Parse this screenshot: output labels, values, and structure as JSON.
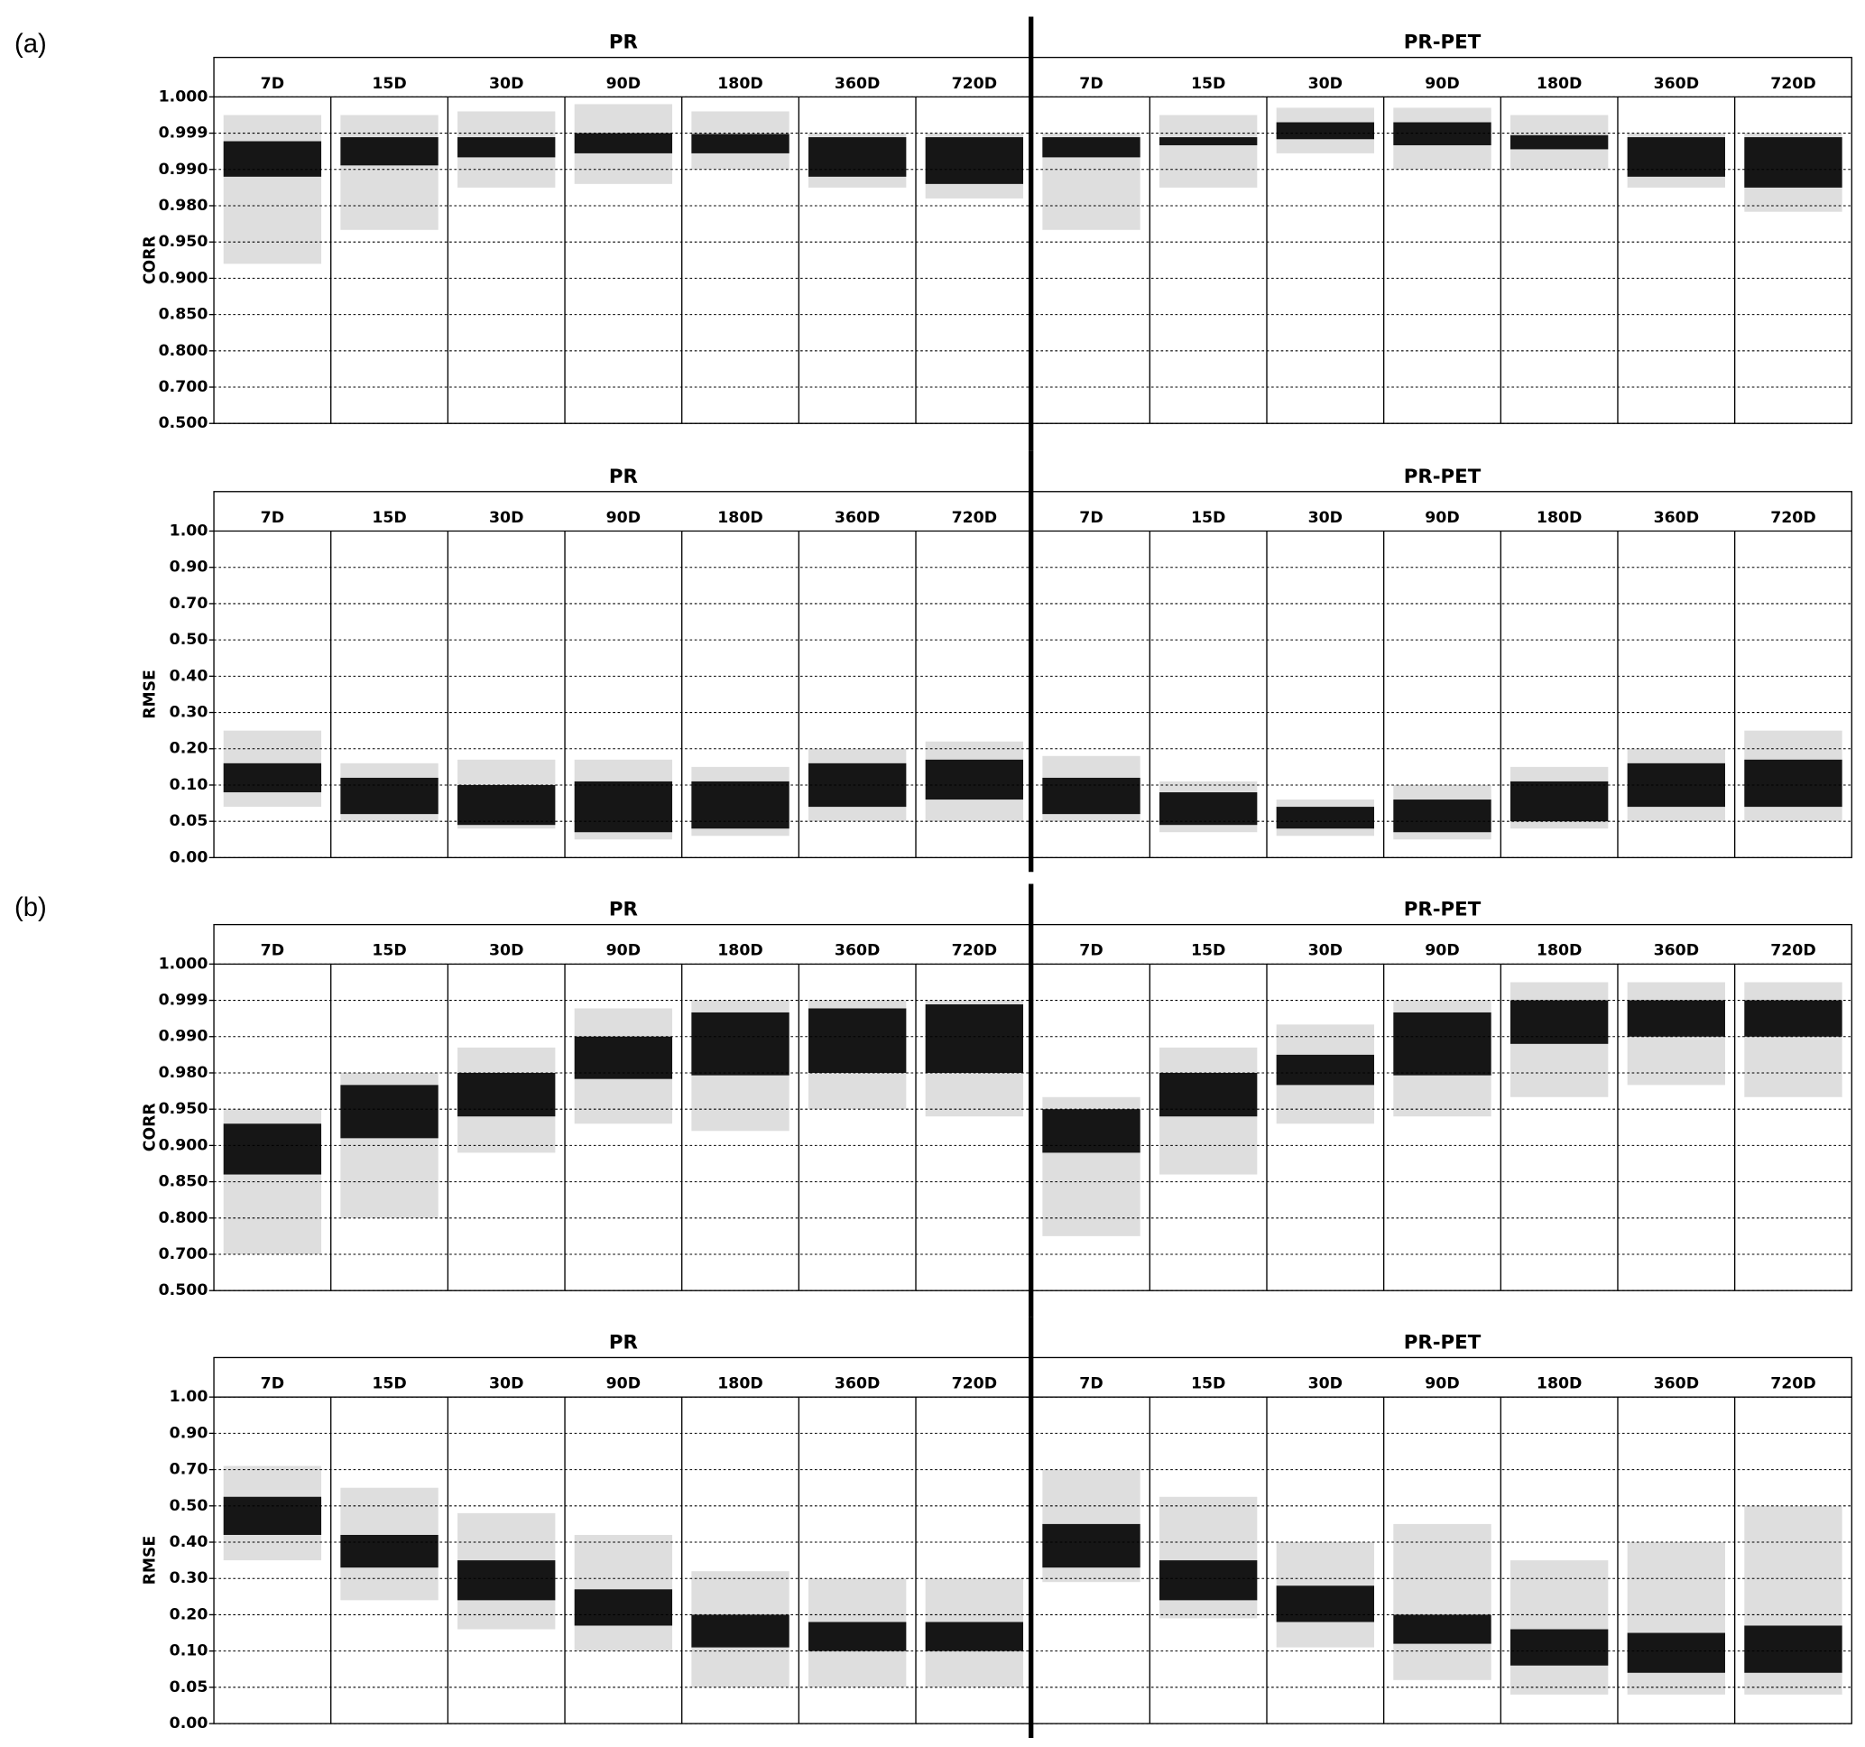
{
  "panel_labels": [
    "(a)",
    "(b)"
  ],
  "chart_data": [
    {
      "type": "band",
      "ylabel": "CORR",
      "color": "#000000",
      "grid": true,
      "scale": "tick-spaced",
      "categories": [
        "7D",
        "15D",
        "30D",
        "90D",
        "180D",
        "360D",
        "720D"
      ],
      "ylim": [
        0.5,
        1.0
      ],
      "yticks": [
        {
          "value": 0.5,
          "label": "0.500"
        },
        {
          "value": 0.7,
          "label": "0.700"
        },
        {
          "value": 0.8,
          "label": "0.800"
        },
        {
          "value": 0.85,
          "label": "0.850"
        },
        {
          "value": 0.9,
          "label": "0.900"
        },
        {
          "value": 0.95,
          "label": "0.950"
        },
        {
          "value": 0.98,
          "label": "0.980"
        },
        {
          "value": 0.99,
          "label": "0.990"
        },
        {
          "value": 0.999,
          "label": "0.999"
        },
        {
          "value": 1.0,
          "label": "1.000"
        }
      ],
      "series": [
        {
          "name": "PR",
          "values": [
            [
              0.988,
              0.997
            ],
            [
              0.991,
              0.998
            ],
            [
              0.993,
              0.998
            ],
            [
              0.994,
              0.999
            ],
            [
              0.994,
              0.9988
            ],
            [
              0.988,
              0.998
            ],
            [
              0.986,
              0.998
            ]
          ],
          "range": [
            [
              0.92,
              0.9995
            ],
            [
              0.96,
              0.9995
            ],
            [
              0.985,
              0.9996
            ],
            [
              0.986,
              0.9998
            ],
            [
              0.99,
              0.9996
            ],
            [
              0.985,
              0.999
            ],
            [
              0.982,
              0.999
            ]
          ]
        },
        {
          "name": "PR-PET",
          "values": [
            [
              0.993,
              0.998
            ],
            [
              0.996,
              0.998
            ],
            [
              0.9975,
              0.9993
            ],
            [
              0.996,
              0.9993
            ],
            [
              0.995,
              0.9985
            ],
            [
              0.988,
              0.998
            ],
            [
              0.985,
              0.998
            ]
          ],
          "range": [
            [
              0.96,
              0.999
            ],
            [
              0.985,
              0.9995
            ],
            [
              0.994,
              0.9997
            ],
            [
              0.99,
              0.9997
            ],
            [
              0.99,
              0.9995
            ],
            [
              0.985,
              0.999
            ],
            [
              0.975,
              0.999
            ]
          ]
        }
      ]
    },
    {
      "type": "band",
      "ylabel": "RMSE",
      "color": "#000000",
      "grid": true,
      "scale": "tick-spaced",
      "categories": [
        "7D",
        "15D",
        "30D",
        "90D",
        "180D",
        "360D",
        "720D"
      ],
      "ylim": [
        0.0,
        1.0
      ],
      "yticks": [
        {
          "value": 0.0,
          "label": "0.00"
        },
        {
          "value": 0.05,
          "label": "0.05"
        },
        {
          "value": 0.1,
          "label": "0.10"
        },
        {
          "value": 0.2,
          "label": "0.20"
        },
        {
          "value": 0.3,
          "label": "0.30"
        },
        {
          "value": 0.4,
          "label": "0.40"
        },
        {
          "value": 0.5,
          "label": "0.50"
        },
        {
          "value": 0.7,
          "label": "0.70"
        },
        {
          "value": 0.9,
          "label": "0.90"
        },
        {
          "value": 1.0,
          "label": "1.00"
        }
      ],
      "series": [
        {
          "name": "PR",
          "values": [
            [
              0.09,
              0.16
            ],
            [
              0.06,
              0.12
            ],
            [
              0.045,
              0.1
            ],
            [
              0.035,
              0.11
            ],
            [
              0.04,
              0.11
            ],
            [
              0.07,
              0.16
            ],
            [
              0.08,
              0.17
            ]
          ],
          "range": [
            [
              0.07,
              0.25
            ],
            [
              0.05,
              0.16
            ],
            [
              0.04,
              0.17
            ],
            [
              0.025,
              0.17
            ],
            [
              0.03,
              0.15
            ],
            [
              0.05,
              0.2
            ],
            [
              0.05,
              0.22
            ]
          ]
        },
        {
          "name": "PR-PET",
          "values": [
            [
              0.06,
              0.12
            ],
            [
              0.045,
              0.09
            ],
            [
              0.04,
              0.07
            ],
            [
              0.035,
              0.08
            ],
            [
              0.05,
              0.11
            ],
            [
              0.07,
              0.16
            ],
            [
              0.07,
              0.17
            ]
          ],
          "range": [
            [
              0.05,
              0.18
            ],
            [
              0.035,
              0.11
            ],
            [
              0.03,
              0.08
            ],
            [
              0.025,
              0.1
            ],
            [
              0.04,
              0.15
            ],
            [
              0.05,
              0.2
            ],
            [
              0.05,
              0.25
            ]
          ]
        }
      ]
    },
    {
      "type": "band",
      "ylabel": "CORR",
      "color": "#000000",
      "grid": true,
      "scale": "tick-spaced",
      "categories": [
        "7D",
        "15D",
        "30D",
        "90D",
        "180D",
        "360D",
        "720D"
      ],
      "ylim": [
        0.5,
        1.0
      ],
      "yticks": [
        {
          "value": 0.5,
          "label": "0.500"
        },
        {
          "value": 0.7,
          "label": "0.700"
        },
        {
          "value": 0.8,
          "label": "0.800"
        },
        {
          "value": 0.85,
          "label": "0.850"
        },
        {
          "value": 0.9,
          "label": "0.900"
        },
        {
          "value": 0.95,
          "label": "0.950"
        },
        {
          "value": 0.98,
          "label": "0.980"
        },
        {
          "value": 0.99,
          "label": "0.990"
        },
        {
          "value": 0.999,
          "label": "0.999"
        },
        {
          "value": 1.0,
          "label": "1.000"
        }
      ],
      "series": [
        {
          "name": "PR",
          "values": [
            [
              0.86,
              0.93
            ],
            [
              0.91,
              0.97
            ],
            [
              0.94,
              0.98
            ],
            [
              0.975,
              0.99
            ],
            [
              0.978,
              0.996
            ],
            [
              0.98,
              0.997
            ],
            [
              0.98,
              0.998
            ]
          ],
          "range": [
            [
              0.7,
              0.95
            ],
            [
              0.8,
              0.98
            ],
            [
              0.89,
              0.987
            ],
            [
              0.93,
              0.997
            ],
            [
              0.92,
              0.999
            ],
            [
              0.95,
              0.999
            ],
            [
              0.94,
              0.999
            ]
          ]
        },
        {
          "name": "PR-PET",
          "values": [
            [
              0.89,
              0.95
            ],
            [
              0.94,
              0.98
            ],
            [
              0.97,
              0.985
            ],
            [
              0.978,
              0.996
            ],
            [
              0.988,
              0.999
            ],
            [
              0.99,
              0.999
            ],
            [
              0.99,
              0.999
            ]
          ],
          "range": [
            [
              0.75,
              0.96
            ],
            [
              0.86,
              0.987
            ],
            [
              0.93,
              0.993
            ],
            [
              0.94,
              0.999
            ],
            [
              0.96,
              0.9995
            ],
            [
              0.97,
              0.9995
            ],
            [
              0.96,
              0.9995
            ]
          ]
        }
      ]
    },
    {
      "type": "band",
      "ylabel": "RMSE",
      "color": "#000000",
      "grid": true,
      "scale": "tick-spaced",
      "categories": [
        "7D",
        "15D",
        "30D",
        "90D",
        "180D",
        "360D",
        "720D"
      ],
      "ylim": [
        0.0,
        1.0
      ],
      "yticks": [
        {
          "value": 0.0,
          "label": "0.00"
        },
        {
          "value": 0.05,
          "label": "0.05"
        },
        {
          "value": 0.1,
          "label": "0.10"
        },
        {
          "value": 0.2,
          "label": "0.20"
        },
        {
          "value": 0.3,
          "label": "0.30"
        },
        {
          "value": 0.4,
          "label": "0.40"
        },
        {
          "value": 0.5,
          "label": "0.50"
        },
        {
          "value": 0.7,
          "label": "0.70"
        },
        {
          "value": 0.9,
          "label": "0.90"
        },
        {
          "value": 1.0,
          "label": "1.00"
        }
      ],
      "series": [
        {
          "name": "PR",
          "values": [
            [
              0.42,
              0.55
            ],
            [
              0.33,
              0.42
            ],
            [
              0.24,
              0.35
            ],
            [
              0.17,
              0.27
            ],
            [
              0.11,
              0.2
            ],
            [
              0.1,
              0.18
            ],
            [
              0.1,
              0.18
            ]
          ],
          "range": [
            [
              0.35,
              0.72
            ],
            [
              0.24,
              0.6
            ],
            [
              0.16,
              0.48
            ],
            [
              0.1,
              0.42
            ],
            [
              0.05,
              0.32
            ],
            [
              0.05,
              0.3
            ],
            [
              0.05,
              0.3
            ]
          ]
        },
        {
          "name": "PR-PET",
          "values": [
            [
              0.33,
              0.45
            ],
            [
              0.24,
              0.35
            ],
            [
              0.18,
              0.28
            ],
            [
              0.12,
              0.2
            ],
            [
              0.08,
              0.16
            ],
            [
              0.07,
              0.15
            ],
            [
              0.07,
              0.17
            ]
          ],
          "range": [
            [
              0.29,
              0.7
            ],
            [
              0.19,
              0.55
            ],
            [
              0.11,
              0.4
            ],
            [
              0.06,
              0.45
            ],
            [
              0.04,
              0.35
            ],
            [
              0.04,
              0.4
            ],
            [
              0.04,
              0.5
            ]
          ]
        }
      ]
    }
  ]
}
